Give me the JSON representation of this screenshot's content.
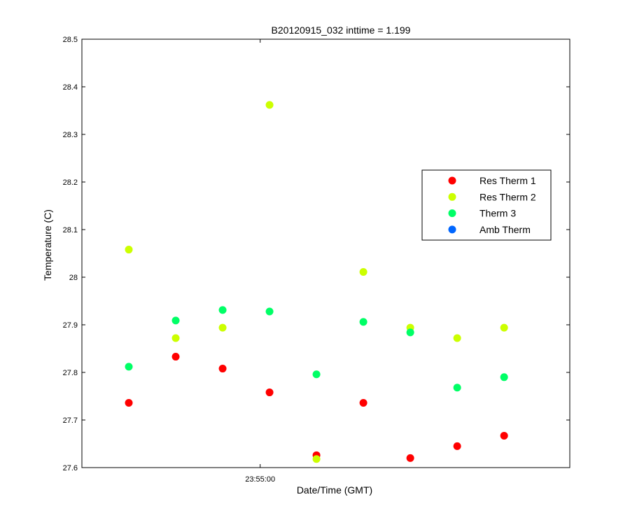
{
  "chart_data": {
    "type": "scatter",
    "title": "B20120915_032 inttime = 1.199",
    "xlabel": "Date/Time (GMT)",
    "ylabel": "Temperature (C)",
    "ylim": [
      27.6,
      28.5
    ],
    "yticks": [
      "27.6",
      "27.7",
      "27.8",
      "27.9",
      "28",
      "28.1",
      "28.2",
      "28.3",
      "28.4",
      "28.5"
    ],
    "xlim": [
      "23:54:22",
      "23:56:06"
    ],
    "xticks": [
      "23:55:00"
    ],
    "grid": false,
    "legend_position": "right",
    "x": [
      "23:54:32",
      "23:54:42",
      "23:54:52",
      "23:55:02",
      "23:55:12",
      "23:55:22",
      "23:55:32",
      "23:55:42",
      "23:55:52"
    ],
    "series": [
      {
        "name": "Res Therm 1",
        "color": "#ff0000",
        "values": [
          27.736,
          27.833,
          27.808,
          27.758,
          27.626,
          27.736,
          27.62,
          27.645,
          27.667
        ]
      },
      {
        "name": "Res Therm 2",
        "color": "#ccff00",
        "values": [
          28.058,
          27.872,
          27.894,
          28.362,
          27.618,
          28.011,
          27.894,
          27.872,
          27.894
        ]
      },
      {
        "name": "Therm 3",
        "color": "#00ff66",
        "values": [
          27.812,
          27.909,
          27.931,
          27.928,
          27.796,
          27.906,
          27.884,
          27.768,
          27.79
        ]
      },
      {
        "name": "Amb Therm",
        "color": "#0066ff",
        "values": []
      }
    ]
  }
}
